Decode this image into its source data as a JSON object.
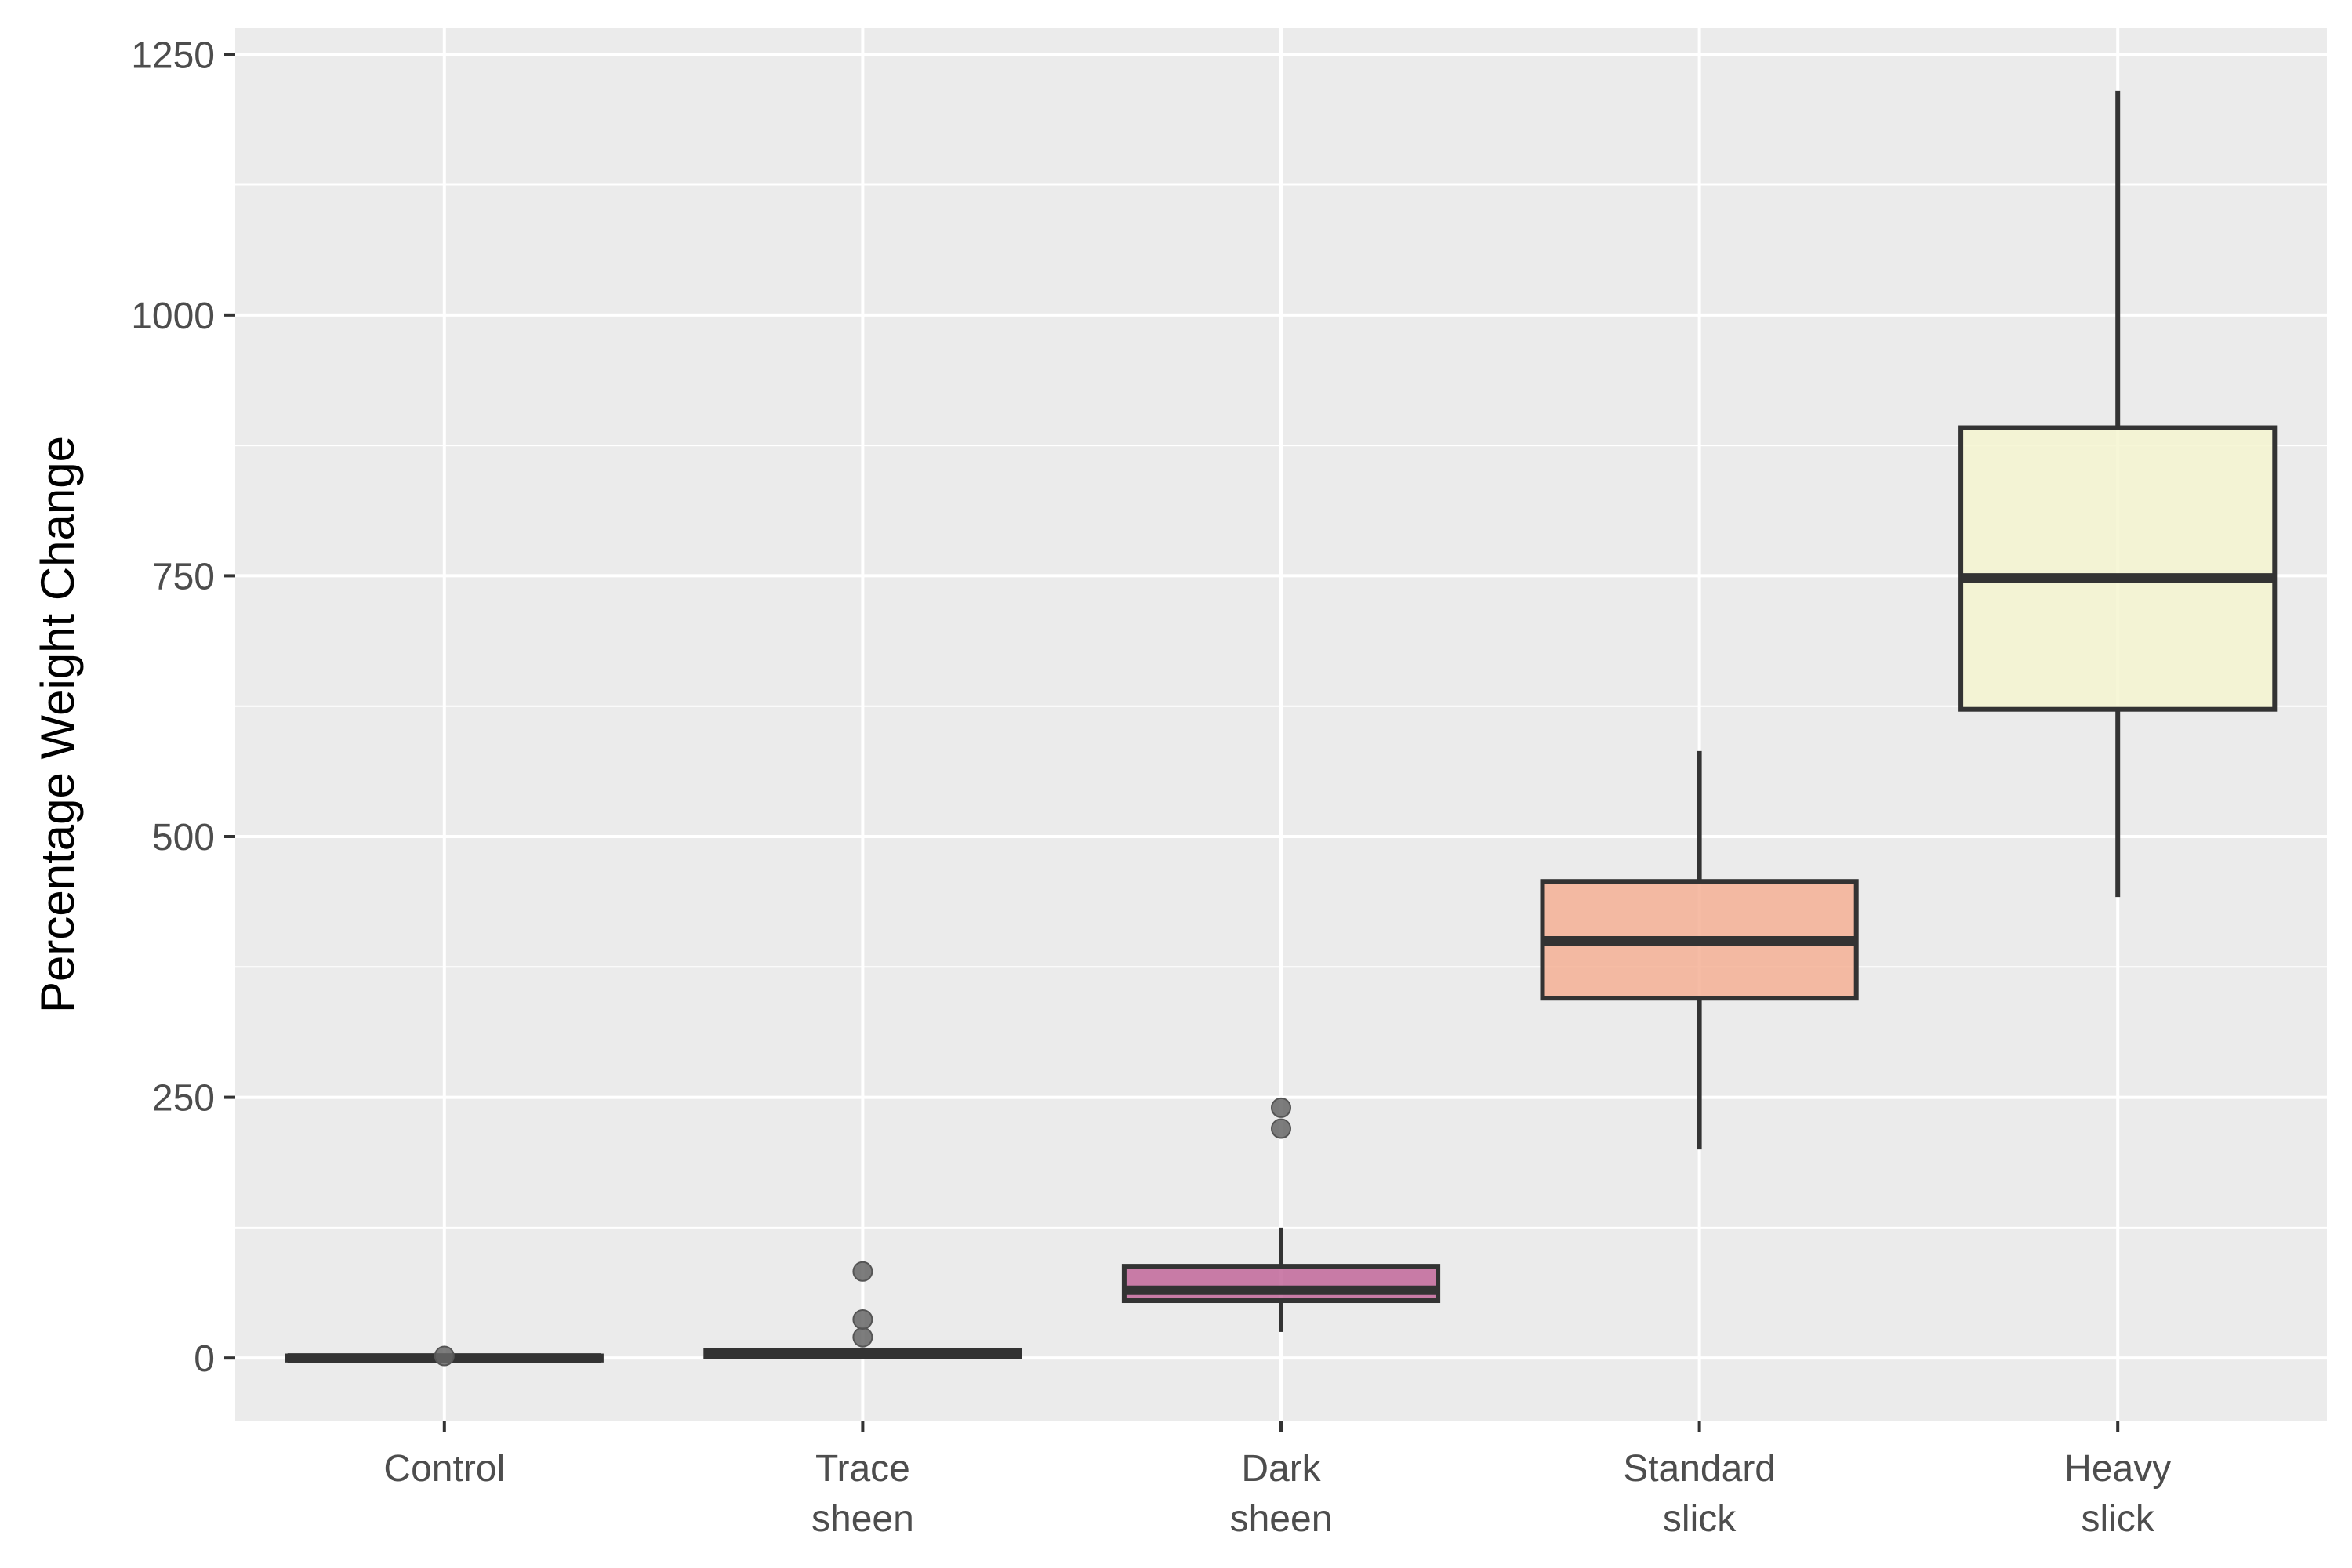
{
  "chart_data": {
    "type": "box",
    "title": "",
    "xlabel": "",
    "ylabel": "Percentage Weight Change",
    "ylim": [
      -60,
      1275
    ],
    "yticks": [
      0,
      250,
      500,
      750,
      1000,
      1250
    ],
    "yticks_labels": [
      "0",
      "250",
      "500",
      "750",
      "1000",
      "1250"
    ],
    "grid": true,
    "legend": "none",
    "categories": [
      {
        "label": [
          "Control"
        ],
        "q1": -2,
        "median": 0,
        "q3": 2,
        "whisker_low": -2,
        "whisker_high": 3,
        "outliers": [
          2
        ],
        "fill": "#7b1a5a"
      },
      {
        "label": [
          "Trace",
          "sheen"
        ],
        "q1": 1,
        "median": 4,
        "q3": 7,
        "whisker_low": 0,
        "whisker_high": 10,
        "outliers": [
          20,
          37,
          83
        ],
        "fill": "#5c1a63"
      },
      {
        "label": [
          "Dark",
          "sheen"
        ],
        "q1": 55,
        "median": 65,
        "q3": 88,
        "whisker_low": 25,
        "whisker_high": 125,
        "outliers": [
          220,
          240
        ],
        "fill": "#c2679a"
      },
      {
        "label": [
          "Standard",
          "slick"
        ],
        "q1": 345,
        "median": 400,
        "q3": 457,
        "whisker_low": 200,
        "whisker_high": 582,
        "outliers": [],
        "fill": "#f5b095"
      },
      {
        "label": [
          "Heavy",
          "slick"
        ],
        "q1": 622,
        "median": 748,
        "q3": 892,
        "whisker_low": 442,
        "whisker_high": 1215,
        "outliers": [],
        "fill": "#f5f5d0"
      }
    ],
    "colors": {
      "panel": "#ebebeb",
      "grid": "#ffffff",
      "box_line": "#333333",
      "outlier": "#666666",
      "tick": "#333333"
    }
  }
}
